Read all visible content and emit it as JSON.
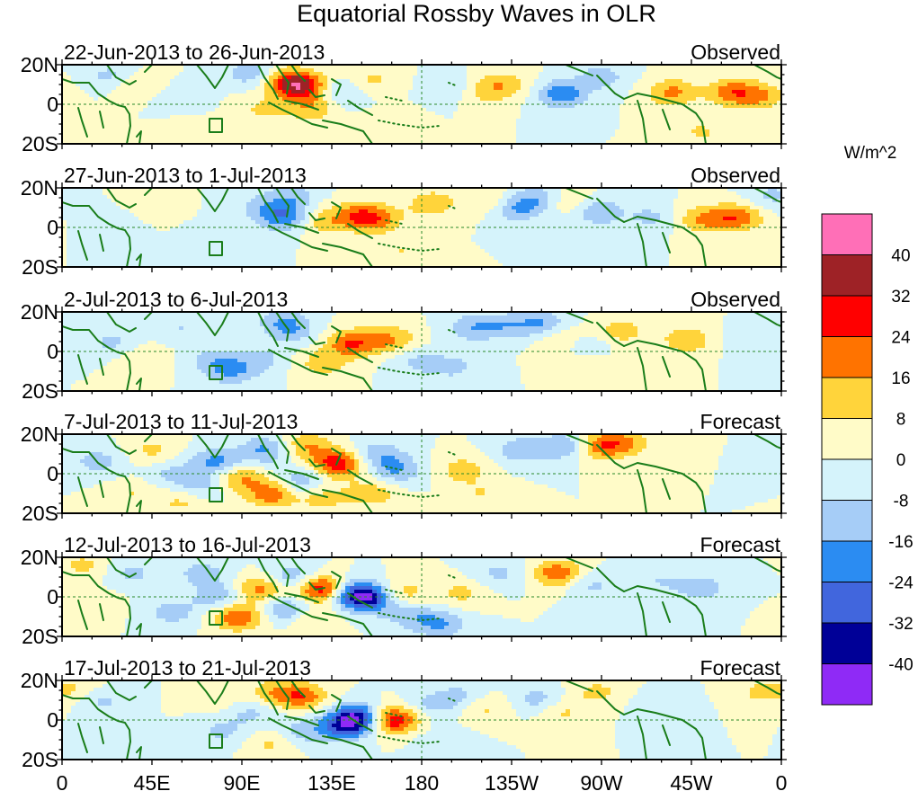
{
  "chart_data": {
    "type": "heatmap",
    "title": "Equatorial Rossby Waves in OLR",
    "units_label": "W/m^2",
    "xlabel": "",
    "ylabel": "",
    "x_range": [
      0,
      360
    ],
    "y_range": [
      -20,
      20
    ],
    "x_tick_labels": [
      "0",
      "45E",
      "90E",
      "135E",
      "180",
      "135W",
      "90W",
      "45W",
      "0"
    ],
    "y_tick_labels": [
      "20N",
      "0",
      "20S"
    ],
    "colorbar": {
      "levels": [
        "40",
        "32",
        "24",
        "16",
        "8",
        "0",
        "-8",
        "-16",
        "-24",
        "-32",
        "-40"
      ],
      "colors": [
        "#ff6fb7",
        "#9e2226",
        "#ff0000",
        "#ff7300",
        "#ffd43b",
        "#fffbc8",
        "#d5f3fb",
        "#a6cdf7",
        "#2b8cf2",
        "#4166dd",
        "#000097",
        "#8f2af6"
      ]
    },
    "panels": [
      {
        "date_range": "22-Jun-2013 to 26-Jun-2013",
        "label": "Observed",
        "anomalies": [
          {
            "lon": 120,
            "lat": 9,
            "amp": 30
          },
          {
            "lon": 112,
            "lat": 12,
            "amp": 18
          },
          {
            "lon": 100,
            "lat": -3,
            "amp": 9
          },
          {
            "lon": 125,
            "lat": -2,
            "amp": 14
          },
          {
            "lon": 140,
            "lat": 6,
            "amp": -12
          },
          {
            "lon": 155,
            "lat": 12,
            "amp": 10
          },
          {
            "lon": 195,
            "lat": 8,
            "amp": -9
          },
          {
            "lon": 210,
            "lat": 6,
            "amp": 10
          },
          {
            "lon": 222,
            "lat": 10,
            "amp": 13
          },
          {
            "lon": 250,
            "lat": 5,
            "amp": -22
          },
          {
            "lon": 270,
            "lat": 14,
            "amp": -12
          },
          {
            "lon": 305,
            "lat": 6,
            "amp": 18
          },
          {
            "lon": 335,
            "lat": 6,
            "amp": 20
          },
          {
            "lon": 350,
            "lat": 4,
            "amp": 15
          },
          {
            "lon": 25,
            "lat": 14,
            "amp": -12
          },
          {
            "lon": 35,
            "lat": 10,
            "amp": 10
          },
          {
            "lon": 60,
            "lat": 2,
            "amp": -6
          },
          {
            "lon": 65,
            "lat": -14,
            "amp": 8
          },
          {
            "lon": 95,
            "lat": 16,
            "amp": -15
          },
          {
            "lon": 165,
            "lat": -10,
            "amp": 8
          },
          {
            "lon": 320,
            "lat": -14,
            "amp": 9
          }
        ]
      },
      {
        "date_range": "27-Jun-2013 to 1-Jul-2013",
        "label": "Observed",
        "anomalies": [
          {
            "lon": 112,
            "lat": 5,
            "amp": -22
          },
          {
            "lon": 100,
            "lat": 10,
            "amp": -10
          },
          {
            "lon": 130,
            "lat": 3,
            "amp": 13
          },
          {
            "lon": 148,
            "lat": 6,
            "amp": 18
          },
          {
            "lon": 158,
            "lat": 4,
            "amp": 16
          },
          {
            "lon": 185,
            "lat": 12,
            "amp": 14
          },
          {
            "lon": 215,
            "lat": 14,
            "amp": 10
          },
          {
            "lon": 228,
            "lat": 10,
            "amp": -18
          },
          {
            "lon": 240,
            "lat": 15,
            "amp": -12
          },
          {
            "lon": 253,
            "lat": 13,
            "amp": 10
          },
          {
            "lon": 268,
            "lat": 8,
            "amp": -16
          },
          {
            "lon": 295,
            "lat": 5,
            "amp": -10
          },
          {
            "lon": 320,
            "lat": 4,
            "amp": 16
          },
          {
            "lon": 338,
            "lat": 5,
            "amp": 22
          },
          {
            "lon": 115,
            "lat": 16,
            "amp": -12
          },
          {
            "lon": 25,
            "lat": 5,
            "amp": -8
          },
          {
            "lon": 40,
            "lat": 12,
            "amp": 8
          },
          {
            "lon": 80,
            "lat": -8,
            "amp": -7
          },
          {
            "lon": 170,
            "lat": -12,
            "amp": 8
          },
          {
            "lon": 355,
            "lat": 16,
            "amp": -10
          }
        ]
      },
      {
        "date_range": "2-Jul-2013 to 6-Jul-2013",
        "label": "Observed",
        "anomalies": [
          {
            "lon": 145,
            "lat": 4,
            "amp": 24
          },
          {
            "lon": 165,
            "lat": 6,
            "amp": 16
          },
          {
            "lon": 115,
            "lat": 10,
            "amp": -12
          },
          {
            "lon": 100,
            "lat": -4,
            "amp": -10
          },
          {
            "lon": 130,
            "lat": -6,
            "amp": 12
          },
          {
            "lon": 85,
            "lat": -10,
            "amp": -16
          },
          {
            "lon": 75,
            "lat": -4,
            "amp": -10
          },
          {
            "lon": 110,
            "lat": 16,
            "amp": -12
          },
          {
            "lon": 178,
            "lat": -5,
            "amp": -10
          },
          {
            "lon": 196,
            "lat": -8,
            "amp": -10
          },
          {
            "lon": 205,
            "lat": 12,
            "amp": -14
          },
          {
            "lon": 222,
            "lat": 13,
            "amp": -12
          },
          {
            "lon": 240,
            "lat": 14,
            "amp": -16
          },
          {
            "lon": 250,
            "lat": 6,
            "amp": 10
          },
          {
            "lon": 262,
            "lat": 2,
            "amp": -10
          },
          {
            "lon": 280,
            "lat": 10,
            "amp": 12
          },
          {
            "lon": 313,
            "lat": 6,
            "amp": 15
          },
          {
            "lon": 345,
            "lat": 5,
            "amp": -8
          },
          {
            "lon": 25,
            "lat": 4,
            "amp": -10
          },
          {
            "lon": 40,
            "lat": -4,
            "amp": 8
          },
          {
            "lon": 60,
            "lat": 12,
            "amp": -8
          },
          {
            "lon": 263,
            "lat": -6,
            "amp": 8
          }
        ]
      },
      {
        "date_range": "7-Jul-2013 to 11-Jul-2013",
        "label": "Forecast",
        "anomalies": [
          {
            "lon": 138,
            "lat": 5,
            "amp": 30
          },
          {
            "lon": 122,
            "lat": 14,
            "amp": 16
          },
          {
            "lon": 105,
            "lat": -10,
            "amp": 22
          },
          {
            "lon": 88,
            "lat": -2,
            "amp": 18
          },
          {
            "lon": 78,
            "lat": 6,
            "amp": -20
          },
          {
            "lon": 70,
            "lat": -6,
            "amp": -12
          },
          {
            "lon": 102,
            "lat": 12,
            "amp": -18
          },
          {
            "lon": 120,
            "lat": -4,
            "amp": -16
          },
          {
            "lon": 130,
            "lat": -12,
            "amp": 12
          },
          {
            "lon": 158,
            "lat": 10,
            "amp": -14
          },
          {
            "lon": 168,
            "lat": 2,
            "amp": -16
          },
          {
            "lon": 155,
            "lat": -10,
            "amp": 14
          },
          {
            "lon": 200,
            "lat": 2,
            "amp": 12
          },
          {
            "lon": 210,
            "lat": -10,
            "amp": 8
          },
          {
            "lon": 230,
            "lat": 12,
            "amp": -14
          },
          {
            "lon": 252,
            "lat": 14,
            "amp": -16
          },
          {
            "lon": 270,
            "lat": 14,
            "amp": 22
          },
          {
            "lon": 283,
            "lat": 16,
            "amp": 12
          },
          {
            "lon": 18,
            "lat": 6,
            "amp": -12
          },
          {
            "lon": 45,
            "lat": 12,
            "amp": 10
          },
          {
            "lon": 55,
            "lat": 0,
            "amp": -10
          },
          {
            "lon": 35,
            "lat": -10,
            "amp": 8
          },
          {
            "lon": 60,
            "lat": -14,
            "amp": 10
          }
        ]
      },
      {
        "date_range": "12-Jul-2013 to 16-Jul-2013",
        "label": "Forecast",
        "anomalies": [
          {
            "lon": 130,
            "lat": 4,
            "amp": 32
          },
          {
            "lon": 148,
            "lat": 1,
            "amp": -40
          },
          {
            "lon": 158,
            "lat": -2,
            "amp": -16
          },
          {
            "lon": 100,
            "lat": 4,
            "amp": 20
          },
          {
            "lon": 88,
            "lat": -10,
            "amp": 24
          },
          {
            "lon": 70,
            "lat": 12,
            "amp": -12
          },
          {
            "lon": 78,
            "lat": 0,
            "amp": -14
          },
          {
            "lon": 115,
            "lat": 10,
            "amp": -16
          },
          {
            "lon": 112,
            "lat": -6,
            "amp": -18
          },
          {
            "lon": 125,
            "lat": -12,
            "amp": 10
          },
          {
            "lon": 170,
            "lat": 2,
            "amp": 14
          },
          {
            "lon": 175,
            "lat": -10,
            "amp": -12
          },
          {
            "lon": 190,
            "lat": -14,
            "amp": -16
          },
          {
            "lon": 200,
            "lat": 2,
            "amp": 10
          },
          {
            "lon": 218,
            "lat": 12,
            "amp": -10
          },
          {
            "lon": 248,
            "lat": 12,
            "amp": 22
          },
          {
            "lon": 265,
            "lat": 6,
            "amp": -10
          },
          {
            "lon": 300,
            "lat": 8,
            "amp": -8
          },
          {
            "lon": 320,
            "lat": 4,
            "amp": -12
          },
          {
            "lon": 345,
            "lat": 10,
            "amp": -8
          },
          {
            "lon": 10,
            "lat": 16,
            "amp": 10
          },
          {
            "lon": 35,
            "lat": 12,
            "amp": -10
          },
          {
            "lon": 55,
            "lat": -8,
            "amp": -12
          },
          {
            "lon": 15,
            "lat": -4,
            "amp": 8
          }
        ]
      },
      {
        "date_range": "17-Jul-2013 to 21-Jul-2013",
        "label": "Forecast",
        "anomalies": [
          {
            "lon": 148,
            "lat": 1,
            "amp": -40
          },
          {
            "lon": 140,
            "lat": -4,
            "amp": -20
          },
          {
            "lon": 165,
            "lat": 0,
            "amp": 34
          },
          {
            "lon": 120,
            "lat": 12,
            "amp": 22
          },
          {
            "lon": 105,
            "lat": 14,
            "amp": 12
          },
          {
            "lon": 120,
            "lat": -6,
            "amp": -12
          },
          {
            "lon": 105,
            "lat": -12,
            "amp": 10
          },
          {
            "lon": 95,
            "lat": 4,
            "amp": -10
          },
          {
            "lon": 80,
            "lat": -6,
            "amp": -10
          },
          {
            "lon": 78,
            "lat": 12,
            "amp": 8
          },
          {
            "lon": 185,
            "lat": 8,
            "amp": -10
          },
          {
            "lon": 200,
            "lat": 12,
            "amp": -10
          },
          {
            "lon": 212,
            "lat": 6,
            "amp": 10
          },
          {
            "lon": 238,
            "lat": 10,
            "amp": -12
          },
          {
            "lon": 250,
            "lat": 4,
            "amp": 10
          },
          {
            "lon": 268,
            "lat": 14,
            "amp": 10
          },
          {
            "lon": 300,
            "lat": 6,
            "amp": -8
          },
          {
            "lon": 20,
            "lat": 10,
            "amp": -10
          },
          {
            "lon": 8,
            "lat": 16,
            "amp": 8
          },
          {
            "lon": 350,
            "lat": 14,
            "amp": 10
          },
          {
            "lon": 190,
            "lat": -12,
            "amp": -8
          }
        ]
      }
    ]
  }
}
